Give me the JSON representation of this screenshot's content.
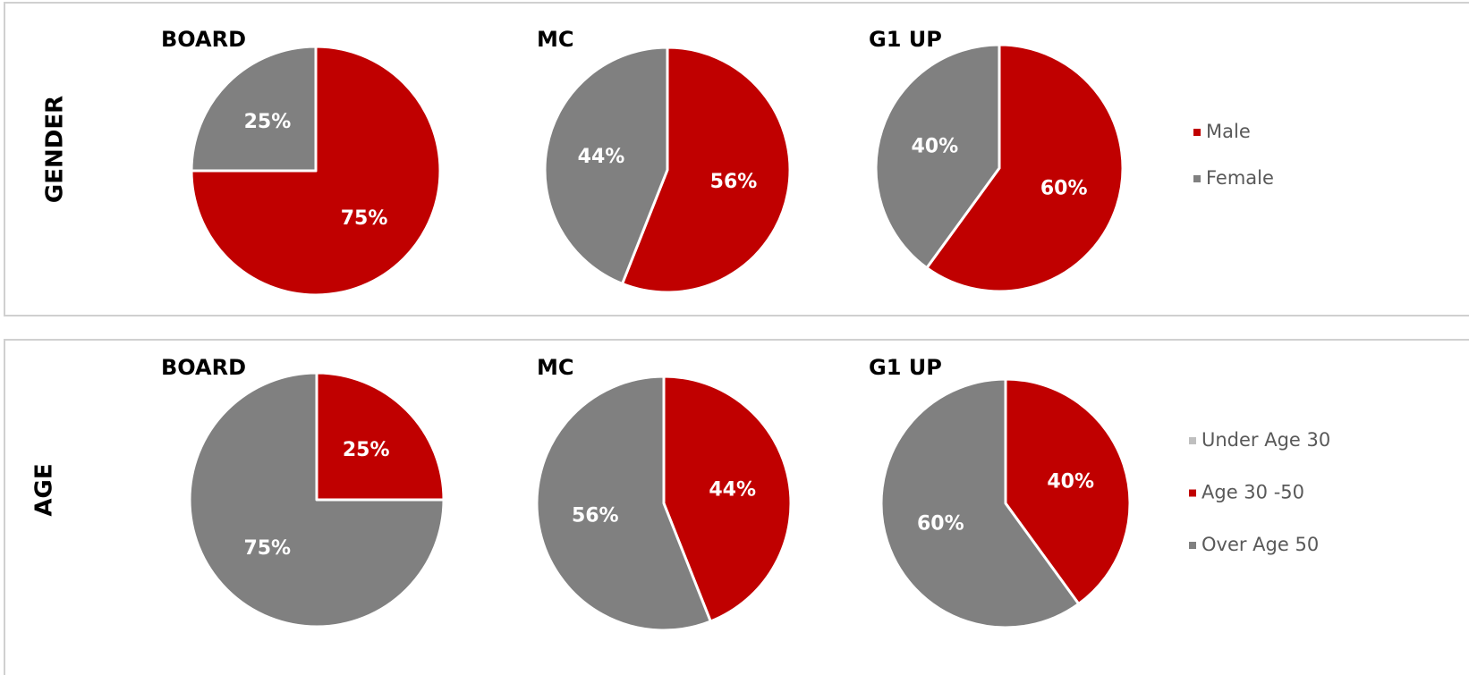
{
  "row_labels": [
    "GENDER",
    "AGE"
  ],
  "chart_data": [
    {
      "type": "pie",
      "title": "BOARD",
      "categories": [
        "Male",
        "Female"
      ],
      "values": [
        75,
        25
      ],
      "value_labels": [
        "75%",
        "25%"
      ],
      "colors": [
        "#c00000",
        "#808080"
      ],
      "legend": false
    },
    {
      "type": "pie",
      "title": "MC",
      "categories": [
        "Male",
        "Female"
      ],
      "values": [
        56,
        44
      ],
      "value_labels": [
        "56%",
        "44%"
      ],
      "colors": [
        "#c00000",
        "#808080"
      ],
      "legend": false
    },
    {
      "type": "pie",
      "title": "G1 UP",
      "categories": [
        "Male",
        "Female"
      ],
      "values": [
        60,
        40
      ],
      "value_labels": [
        "60%",
        "40%"
      ],
      "colors": [
        "#c00000",
        "#808080"
      ],
      "legend": true
    },
    {
      "type": "pie",
      "title": "BOARD",
      "categories": [
        "Under Age 30",
        "Age 30 -50",
        "Over Age 50"
      ],
      "values": [
        0,
        25,
        75
      ],
      "value_labels": [
        null,
        "25%",
        "75%"
      ],
      "colors": [
        "#bfbfbf",
        "#c00000",
        "#808080"
      ],
      "legend": false
    },
    {
      "type": "pie",
      "title": "MC",
      "categories": [
        "Under Age 30",
        "Age 30 -50",
        "Over Age 50"
      ],
      "values": [
        0,
        44,
        56
      ],
      "value_labels": [
        null,
        "44%",
        "56%"
      ],
      "colors": [
        "#bfbfbf",
        "#c00000",
        "#808080"
      ],
      "legend": false
    },
    {
      "type": "pie",
      "title": "G1 UP",
      "categories": [
        "Under Age 30",
        "Age 30 -50",
        "Over Age 50"
      ],
      "values": [
        0,
        40,
        60
      ],
      "value_labels": [
        null,
        "40%",
        "60%"
      ],
      "colors": [
        "#bfbfbf",
        "#c00000",
        "#808080"
      ],
      "legend": true
    }
  ]
}
